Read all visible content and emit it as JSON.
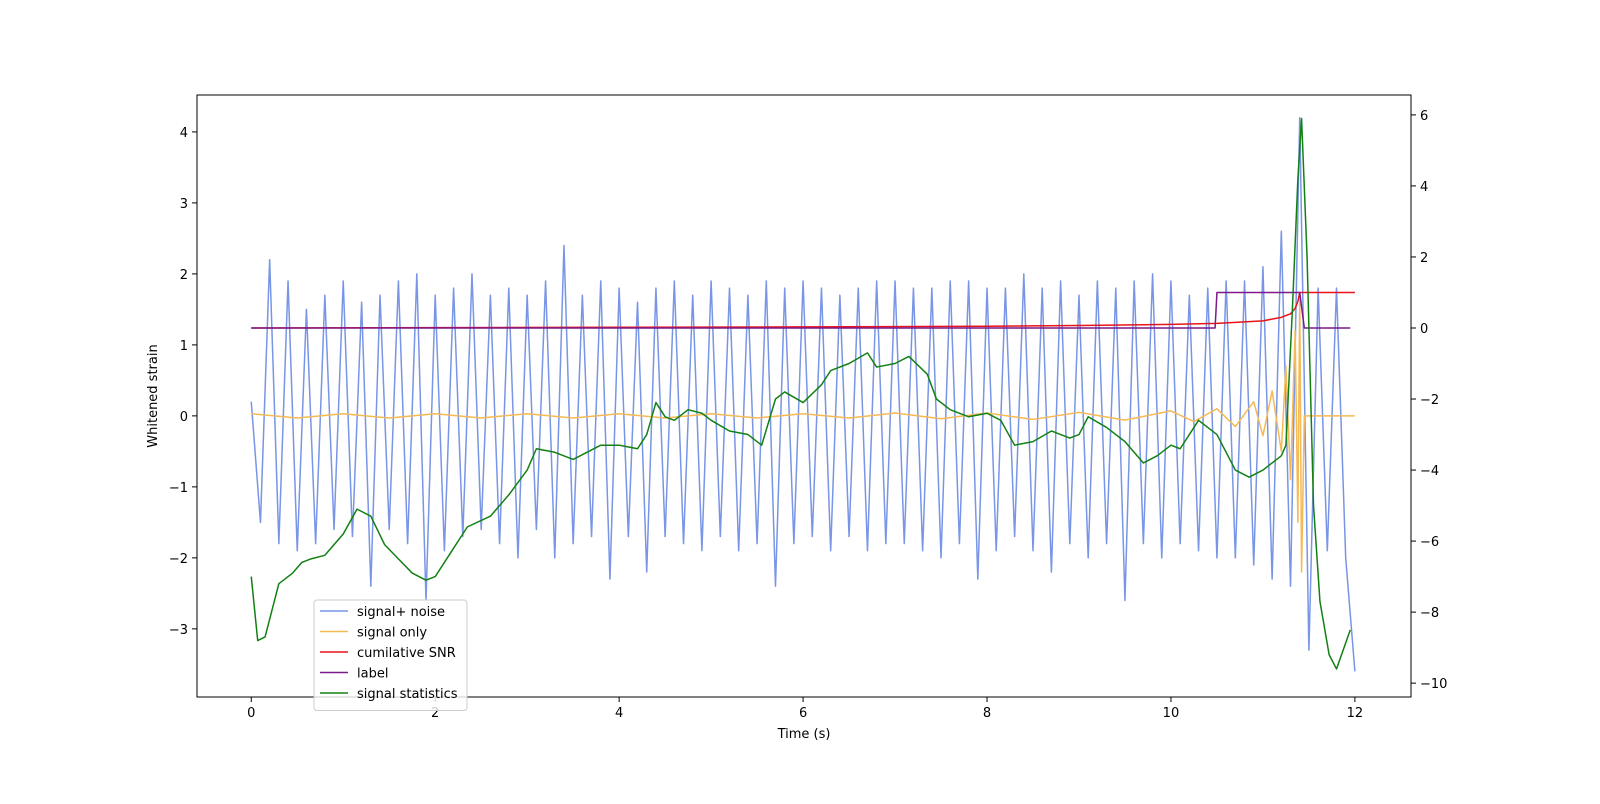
{
  "chart_data": {
    "type": "line",
    "xlabel": "Time (s)",
    "ylabel": "Whitened strain",
    "xlim": [
      -0.59,
      12.61
    ],
    "ylim": [
      -3.96,
      4.52
    ],
    "y2lim": [
      -10.39,
      6.56
    ],
    "xticks": [
      0,
      2,
      4,
      6,
      8,
      10,
      12
    ],
    "yticks": [
      {
        "value": -3,
        "label": "−3"
      },
      {
        "value": -2,
        "label": "−2"
      },
      {
        "value": -1,
        "label": "−1"
      },
      0,
      1,
      2,
      3,
      4
    ],
    "y2ticks": [
      {
        "value": -10,
        "label": "−10"
      },
      {
        "value": -8,
        "label": "−8"
      },
      {
        "value": -6,
        "label": "−6"
      },
      {
        "value": -4,
        "label": "−4"
      },
      {
        "value": -2,
        "label": "−2"
      },
      0,
      2,
      4,
      6
    ],
    "legend": "lower left",
    "series": [
      {
        "name": "signal+ noise",
        "color": "#7895e6",
        "x": [
          0,
          0.1,
          0.2,
          0.3,
          0.4,
          0.5,
          0.6,
          0.7,
          0.8,
          0.9,
          1,
          1.1,
          1.2,
          1.3,
          1.4,
          1.5,
          1.6,
          1.7,
          1.8,
          1.9,
          2,
          2.1,
          2.2,
          2.3,
          2.4,
          2.5,
          2.6,
          2.7,
          2.8,
          2.9,
          3,
          3.1,
          3.2,
          3.3,
          3.4,
          3.5,
          3.6,
          3.7,
          3.8,
          3.9,
          4,
          4.1,
          4.2,
          4.3,
          4.4,
          4.5,
          4.6,
          4.7,
          4.8,
          4.9,
          5,
          5.1,
          5.2,
          5.3,
          5.4,
          5.5,
          5.6,
          5.7,
          5.8,
          5.9,
          6,
          6.1,
          6.2,
          6.3,
          6.4,
          6.5,
          6.6,
          6.7,
          6.8,
          6.9,
          7,
          7.1,
          7.2,
          7.3,
          7.4,
          7.5,
          7.6,
          7.7,
          7.8,
          7.9,
          8,
          8.1,
          8.2,
          8.3,
          8.4,
          8.5,
          8.6,
          8.7,
          8.8,
          8.9,
          9,
          9.1,
          9.2,
          9.3,
          9.4,
          9.5,
          9.6,
          9.7,
          9.8,
          9.9,
          10,
          10.1,
          10.2,
          10.3,
          10.4,
          10.5,
          10.6,
          10.7,
          10.8,
          10.9,
          11,
          11.1,
          11.2,
          11.3,
          11.4,
          11.5,
          11.6,
          11.7,
          11.8,
          11.9,
          12
        ],
        "values": [
          0.2,
          -1.5,
          2.2,
          -1.8,
          1.9,
          -1.9,
          1.5,
          -1.8,
          1.7,
          -1.6,
          1.9,
          -1.7,
          1.6,
          -2.4,
          1.7,
          -1.6,
          1.9,
          -1.8,
          2.0,
          -2.6,
          1.7,
          -1.9,
          1.8,
          -1.7,
          2.0,
          -1.6,
          1.7,
          -1.8,
          1.8,
          -2.0,
          1.7,
          -1.6,
          1.9,
          -2.0,
          2.4,
          -1.8,
          1.7,
          -1.7,
          1.9,
          -2.3,
          1.8,
          -1.7,
          1.6,
          -2.2,
          1.8,
          -1.7,
          1.9,
          -1.8,
          1.7,
          -1.9,
          1.9,
          -1.7,
          1.8,
          -1.9,
          1.7,
          -1.8,
          1.9,
          -2.4,
          1.8,
          -1.8,
          1.9,
          -1.7,
          1.8,
          -1.9,
          1.7,
          -1.7,
          1.8,
          -1.9,
          1.9,
          -1.8,
          1.9,
          -1.8,
          1.8,
          -1.9,
          1.8,
          -2.0,
          1.9,
          -1.8,
          1.9,
          -2.3,
          1.8,
          -1.9,
          1.8,
          -1.7,
          2.0,
          -1.9,
          1.8,
          -2.2,
          1.9,
          -1.8,
          1.7,
          -2.0,
          1.9,
          -1.8,
          1.8,
          -2.6,
          1.9,
          -1.8,
          2.0,
          -2.0,
          1.9,
          -1.8,
          1.7,
          -1.9,
          1.8,
          -2.0,
          1.9,
          -2.0,
          1.9,
          -2.1,
          2.1,
          -2.3,
          2.6,
          -2.4,
          4.2,
          -3.3,
          1.8,
          -1.9,
          1.8,
          -2.0,
          -3.6
        ]
      },
      {
        "name": "signal only",
        "color": "#f5b955",
        "x": [
          0,
          0.5,
          1,
          1.5,
          2,
          2.5,
          3,
          3.5,
          4,
          4.5,
          5,
          5.5,
          6,
          6.5,
          7,
          7.5,
          8,
          8.5,
          9,
          9.5,
          10,
          10.25,
          10.5,
          10.7,
          10.9,
          11,
          11.1,
          11.2,
          11.25,
          11.3,
          11.35,
          11.38,
          11.4,
          11.42,
          11.45,
          12
        ],
        "values": [
          0.03,
          -0.03,
          0.03,
          -0.03,
          0.03,
          -0.03,
          0.03,
          -0.03,
          0.03,
          -0.03,
          0.03,
          -0.03,
          0.03,
          -0.03,
          0.04,
          -0.04,
          0.04,
          -0.05,
          0.05,
          -0.06,
          0.07,
          -0.08,
          0.1,
          -0.15,
          0.2,
          -0.28,
          0.35,
          -0.5,
          0.7,
          -0.9,
          1.2,
          -1.5,
          1.7,
          -2.2,
          0,
          0
        ]
      },
      {
        "name": "cumilative SNR",
        "color": "#e8141b",
        "axis": "y2",
        "x": [
          0,
          2,
          4,
          6,
          8,
          9,
          10,
          10.5,
          11,
          11.2,
          11.3,
          11.35,
          11.38,
          11.4,
          12
        ],
        "values": [
          0,
          0.01,
          0.02,
          0.03,
          0.05,
          0.07,
          0.1,
          0.13,
          0.2,
          0.3,
          0.4,
          0.55,
          0.75,
          1,
          1
        ]
      },
      {
        "name": "label",
        "color": "#7a1a8e",
        "axis": "y2",
        "x": [
          0,
          10.48,
          10.5,
          11.4,
          11.45,
          11.95
        ],
        "values": [
          0,
          0,
          1,
          1,
          0,
          0
        ]
      },
      {
        "name": "signal statistics",
        "color": "#138013",
        "axis": "y2",
        "x": [
          0,
          0.07,
          0.15,
          0.3,
          0.45,
          0.55,
          0.65,
          0.8,
          1,
          1.15,
          1.3,
          1.45,
          1.6,
          1.75,
          1.9,
          2,
          2.15,
          2.35,
          2.6,
          2.8,
          3,
          3.1,
          3.3,
          3.5,
          3.65,
          3.8,
          4,
          4.2,
          4.3,
          4.4,
          4.5,
          4.6,
          4.75,
          4.9,
          5,
          5.2,
          5.4,
          5.55,
          5.7,
          5.8,
          6,
          6.2,
          6.3,
          6.5,
          6.7,
          6.8,
          7,
          7.15,
          7.35,
          7.45,
          7.6,
          7.8,
          8,
          8.15,
          8.3,
          8.5,
          8.7,
          8.9,
          9,
          9.1,
          9.3,
          9.5,
          9.7,
          9.85,
          10,
          10.1,
          10.3,
          10.5,
          10.7,
          10.85,
          11,
          11.2,
          11.25,
          11.32,
          11.38,
          11.42,
          11.48,
          11.55,
          11.62,
          11.72,
          11.8,
          11.95
        ],
        "values": [
          -7.0,
          -8.8,
          -8.7,
          -7.2,
          -6.9,
          -6.6,
          -6.5,
          -6.4,
          -5.8,
          -5.1,
          -5.3,
          -6.1,
          -6.5,
          -6.9,
          -7.1,
          -7.0,
          -6.4,
          -5.6,
          -5.3,
          -4.7,
          -4.0,
          -3.4,
          -3.5,
          -3.7,
          -3.5,
          -3.3,
          -3.3,
          -3.4,
          -3.0,
          -2.1,
          -2.5,
          -2.6,
          -2.3,
          -2.4,
          -2.6,
          -2.9,
          -3.0,
          -3.3,
          -2.0,
          -1.8,
          -2.1,
          -1.6,
          -1.2,
          -1.0,
          -0.7,
          -1.1,
          -1.0,
          -0.8,
          -1.3,
          -2.0,
          -2.3,
          -2.5,
          -2.4,
          -2.6,
          -3.3,
          -3.2,
          -2.9,
          -3.1,
          -3.0,
          -2.5,
          -2.8,
          -3.2,
          -3.8,
          -3.6,
          -3.3,
          -3.4,
          -2.6,
          -3.0,
          -4.0,
          -4.2,
          -4.0,
          -3.6,
          -3.3,
          0.5,
          4.2,
          5.9,
          2.0,
          -5.0,
          -7.7,
          -9.2,
          -9.6,
          -8.5
        ]
      }
    ]
  }
}
